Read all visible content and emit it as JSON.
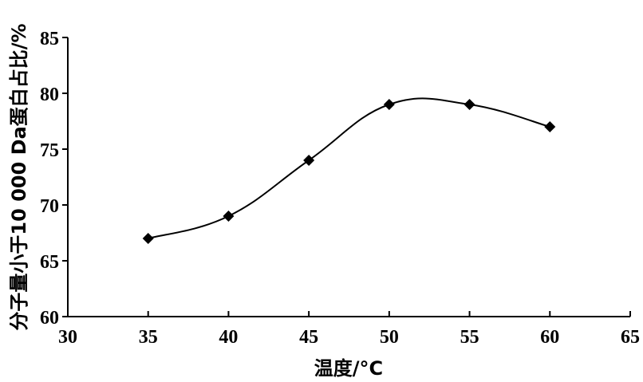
{
  "chart_data": {
    "type": "line",
    "title": "",
    "xlabel": "温度/°C",
    "ylabel": "分子量小于10 000 Da蛋白占比/%",
    "xlim": [
      30,
      65
    ],
    "ylim": [
      60,
      85
    ],
    "xticks": [
      "30",
      "35",
      "40",
      "45",
      "50",
      "55",
      "60",
      "65"
    ],
    "yticks": [
      "60",
      "65",
      "70",
      "75",
      "80",
      "85"
    ],
    "grid": false,
    "legend": "none",
    "line_style": "smooth",
    "marker": "diamond",
    "colors": {
      "line": "#000000",
      "marker": "#000000",
      "axis": "#000000"
    },
    "series": [
      {
        "x": [
          35,
          40,
          45,
          50,
          55,
          60
        ],
        "y": [
          67,
          69,
          74,
          79,
          79,
          77
        ]
      }
    ]
  }
}
